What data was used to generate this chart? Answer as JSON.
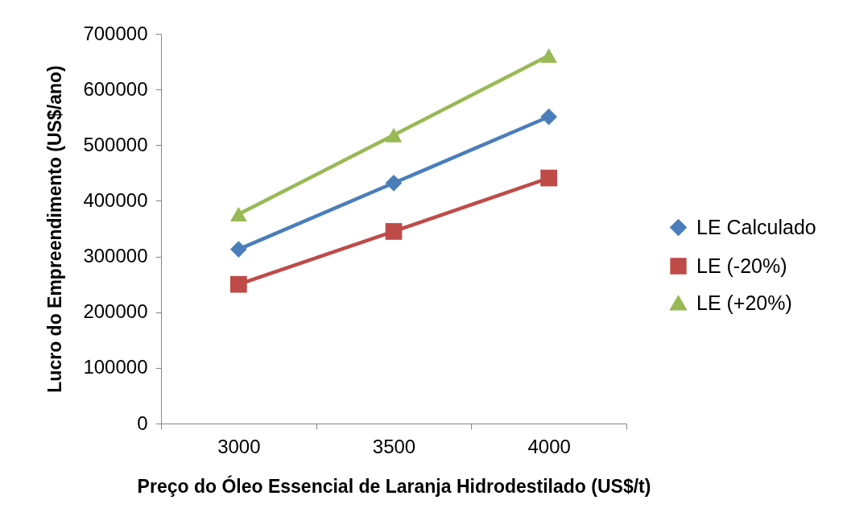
{
  "chart_data": {
    "type": "line",
    "xlabel": "Preço do Óleo Essencial de Laranja Hidrodestilado (US$/t)",
    "ylabel": "Lucro do Empreendimento (US$/ano)",
    "categories": [
      "3000",
      "3500",
      "4000"
    ],
    "series": [
      {
        "name": "LE Calculado",
        "color": "#4a7ebb",
        "marker": "diamond",
        "values": [
          313000,
          432000,
          551000
        ]
      },
      {
        "name": "LE (-20%)",
        "color": "#be4b48",
        "marker": "square",
        "values": [
          250000,
          345000,
          441000
        ]
      },
      {
        "name": "LE (+20%)",
        "color": "#98b954",
        "marker": "triangle",
        "values": [
          376000,
          518000,
          661000
        ]
      }
    ],
    "ylim": [
      0,
      700000
    ],
    "yticks": [
      0,
      100000,
      200000,
      300000,
      400000,
      500000,
      600000,
      700000
    ],
    "grid": false,
    "legend": "right",
    "line_style": "solid"
  }
}
